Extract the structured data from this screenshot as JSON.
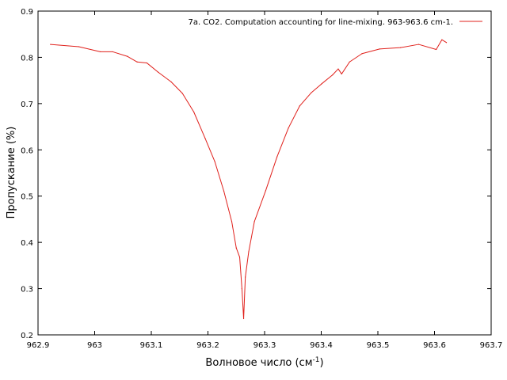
{
  "chart_data": {
    "type": "line",
    "title": "",
    "xlabel": "Волновое число (см",
    "xlabel_superscript": "-1",
    "xlabel_suffix": ")",
    "ylabel": "Пропускание (%)",
    "xlim": [
      962.9,
      963.7
    ],
    "ylim": [
      0.2,
      0.9
    ],
    "x_ticks": [
      962.9,
      963.0,
      963.1,
      963.2,
      963.3,
      963.4,
      963.5,
      963.6,
      963.7
    ],
    "x_tick_labels": [
      "962.9",
      "963",
      "963.1",
      "963.2",
      "963.3",
      "963.4",
      "963.5",
      "963.6",
      "963.7"
    ],
    "y_ticks": [
      0.2,
      0.3,
      0.4,
      0.5,
      0.6,
      0.7,
      0.8,
      0.9
    ],
    "y_tick_labels": [
      "0.2",
      "0.3",
      "0.4",
      "0.5",
      "0.6",
      "0.7",
      "0.8",
      "0.9"
    ],
    "grid": false,
    "legend_position": "top-right",
    "series": [
      {
        "name": "7a. CO2. Computation accounting for line-mixing. 963-963.6 cm-1.",
        "color": "#e0201b",
        "x": [
          962.922,
          962.972,
          963.01,
          963.032,
          963.058,
          963.075,
          963.092,
          963.112,
          963.135,
          963.155,
          963.175,
          963.195,
          963.212,
          963.228,
          963.242,
          963.25,
          963.256,
          963.26,
          963.263,
          963.266,
          963.272,
          963.282,
          963.302,
          963.322,
          963.342,
          963.362,
          963.382,
          963.4,
          963.42,
          963.43,
          963.436,
          963.45,
          963.472,
          963.503,
          963.54,
          963.572,
          963.603,
          963.613,
          963.621
        ],
        "y": [
          0.828,
          0.823,
          0.812,
          0.812,
          0.802,
          0.79,
          0.788,
          0.768,
          0.747,
          0.722,
          0.682,
          0.625,
          0.575,
          0.511,
          0.445,
          0.388,
          0.368,
          0.3,
          0.235,
          0.325,
          0.38,
          0.445,
          0.512,
          0.585,
          0.647,
          0.695,
          0.723,
          0.742,
          0.762,
          0.775,
          0.764,
          0.79,
          0.808,
          0.818,
          0.821,
          0.828,
          0.817,
          0.838,
          0.832
        ]
      }
    ]
  }
}
